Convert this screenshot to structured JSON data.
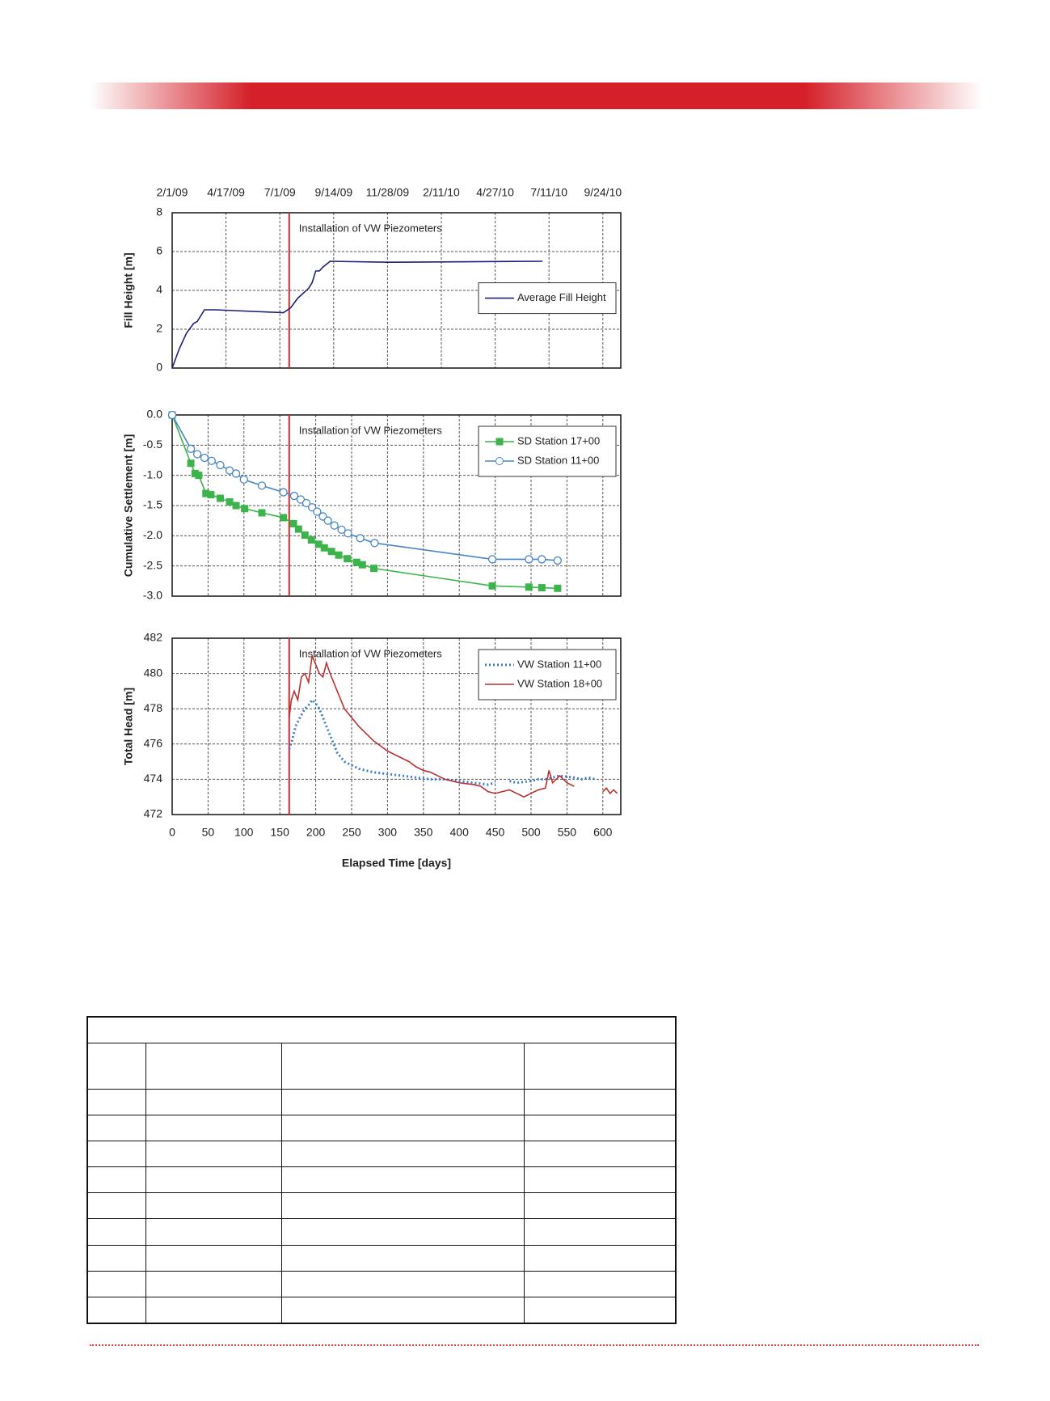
{
  "chart_data": [
    {
      "type": "line",
      "ylabel": "Fill Height [m]",
      "xlim": [
        0,
        625
      ],
      "ylim": [
        0,
        8
      ],
      "yticks": [
        0,
        2,
        4,
        6,
        8
      ],
      "xticks": [
        {
          "value": 0,
          "label": "2/1/09"
        },
        {
          "value": 75,
          "label": "4/17/09"
        },
        {
          "value": 150,
          "label": "7/1/09"
        },
        {
          "value": 225,
          "label": "9/14/09"
        },
        {
          "value": 300,
          "label": "11/28/09"
        },
        {
          "value": 375,
          "label": "2/11/10"
        },
        {
          "value": 450,
          "label": "4/27/10"
        },
        {
          "value": 525,
          "label": "7/11/10"
        },
        {
          "value": 600,
          "label": "9/24/10"
        }
      ],
      "xtick_position": "top",
      "grid": true,
      "legend": "center right",
      "annotation": {
        "x": 163,
        "text": "Installation of VW Piezometers",
        "color": "#d42a2a"
      },
      "series": [
        {
          "name": "Average Fill Height",
          "color": "#1f1f78",
          "x": [
            0,
            10,
            20,
            30,
            35,
            45,
            60,
            155,
            165,
            175,
            190,
            195,
            200,
            205,
            210,
            220,
            300,
            516
          ],
          "values": [
            0,
            1,
            1.8,
            2.3,
            2.4,
            3.0,
            3.0,
            2.85,
            3.1,
            3.6,
            4.1,
            4.4,
            5.0,
            5.0,
            5.2,
            5.5,
            5.45,
            5.5
          ]
        }
      ]
    },
    {
      "type": "line",
      "ylabel": "Cumulative Settlement [m]",
      "xlim": [
        0,
        625
      ],
      "ylim": [
        -3,
        0
      ],
      "yticks": [
        {
          "value": 0,
          "label": "0.0"
        },
        -0.5,
        {
          "value": -1,
          "label": "-1.0"
        },
        -1.5,
        {
          "value": -2,
          "label": "-2.0"
        },
        -2.5,
        {
          "value": -3,
          "label": "-3.0"
        }
      ],
      "xticks": [
        0,
        50,
        100,
        150,
        200,
        250,
        300,
        350,
        400,
        450,
        500,
        550,
        600
      ],
      "xtick_labels": false,
      "grid": true,
      "legend": "upper right",
      "annotation": {
        "x": 163,
        "text": "Installation of VW Piezometers",
        "color": "#d42a2a"
      },
      "series": [
        {
          "name": "SD Station 17+00",
          "color": "#3cb44b",
          "marker": "square",
          "x": [
            0,
            26,
            32,
            37,
            47,
            54,
            67,
            80,
            89,
            101,
            125,
            155,
            169,
            176,
            185,
            194,
            204,
            212,
            222,
            232,
            244,
            257,
            265,
            281,
            446,
            497,
            515,
            537
          ],
          "values": [
            0,
            -0.8,
            -0.97,
            -1.0,
            -1.3,
            -1.32,
            -1.38,
            -1.44,
            -1.5,
            -1.55,
            -1.62,
            -1.7,
            -1.8,
            -1.89,
            -1.99,
            -2.07,
            -2.14,
            -2.2,
            -2.26,
            -2.32,
            -2.38,
            -2.44,
            -2.48,
            -2.54,
            -2.83,
            -2.85,
            -2.86,
            -2.87
          ]
        },
        {
          "name": "SD Station 11+00",
          "color": "#4a86c5",
          "marker": "circle",
          "x": [
            0,
            26,
            35,
            45,
            55,
            67,
            80,
            89,
            100,
            125,
            155,
            170,
            179,
            187,
            195,
            202,
            210,
            217,
            226,
            236,
            245,
            262,
            282,
            446,
            497,
            515,
            537
          ],
          "values": [
            0,
            -0.56,
            -0.65,
            -0.71,
            -0.76,
            -0.83,
            -0.92,
            -0.97,
            -1.07,
            -1.17,
            -1.28,
            -1.34,
            -1.4,
            -1.46,
            -1.53,
            -1.6,
            -1.68,
            -1.75,
            -1.83,
            -1.9,
            -1.96,
            -2.04,
            -2.12,
            -2.39,
            -2.39,
            -2.39,
            -2.41
          ]
        }
      ]
    },
    {
      "type": "line",
      "ylabel": "Total Head [m]",
      "xlabel": "Elapsed Time [days]",
      "xlim": [
        0,
        625
      ],
      "ylim": [
        472,
        482
      ],
      "yticks": [
        472,
        474,
        476,
        478,
        480,
        482
      ],
      "xticks": [
        0,
        50,
        100,
        150,
        200,
        250,
        300,
        350,
        400,
        450,
        500,
        550,
        600
      ],
      "grid": true,
      "legend": "upper right",
      "annotation": {
        "x": 163,
        "text": "Installation of VW Piezometers",
        "color": "#d42a2a"
      },
      "series": [
        {
          "name": "VW Station 11+00",
          "color": "#3f7fc8",
          "style": "dotted",
          "x": [
            163,
            167,
            172,
            178,
            185,
            190,
            195,
            200,
            205,
            210,
            215,
            220,
            225,
            230,
            240,
            250,
            260,
            270,
            280,
            300,
            320,
            340,
            360,
            380,
            400,
            420,
            440,
            450,
            460,
            470,
            480,
            500,
            510,
            520,
            530,
            540,
            560,
            570,
            580,
            590
          ],
          "values": [
            475.7,
            476.2,
            477,
            477.5,
            478,
            478.2,
            478.5,
            478.3,
            478,
            477.5,
            477,
            476.5,
            476,
            475.5,
            475,
            474.8,
            474.6,
            474.5,
            474.4,
            474.3,
            474.2,
            474.1,
            474,
            474,
            473.9,
            473.8,
            473.7,
            473.8,
            null,
            473.9,
            473.8,
            473.9,
            474.0,
            474.0,
            474.1,
            474.2,
            474.1,
            474.0,
            474.1,
            474.0
          ]
        },
        {
          "name": "VW Station 18+00",
          "color": "#b83232",
          "style": "solid",
          "x": [
            163,
            166,
            170,
            175,
            180,
            185,
            190,
            195,
            200,
            205,
            210,
            215,
            220,
            225,
            230,
            240,
            250,
            260,
            270,
            280,
            290,
            300,
            310,
            320,
            330,
            340,
            350,
            360,
            370,
            380,
            390,
            400,
            420,
            430,
            440,
            450,
            460,
            470,
            480,
            490,
            500,
            510,
            520,
            525,
            530,
            540,
            550,
            560,
            580,
            600,
            605,
            610,
            615,
            620
          ],
          "values": [
            477.5,
            478.5,
            479,
            478.5,
            479.8,
            480,
            479.5,
            481,
            480.5,
            480,
            479.8,
            480.6,
            480,
            479.5,
            479,
            478,
            477.5,
            477,
            476.6,
            476.2,
            475.9,
            475.6,
            475.4,
            475.2,
            475,
            474.7,
            474.5,
            474.4,
            474.2,
            474.0,
            473.9,
            473.8,
            473.7,
            473.6,
            473.3,
            473.2,
            473.3,
            473.4,
            473.2,
            473.0,
            473.2,
            473.4,
            473.5,
            474.5,
            473.8,
            474.2,
            473.8,
            473.6,
            null,
            473.3,
            473.5,
            473.2,
            473.4,
            473.2
          ]
        }
      ]
    }
  ]
}
